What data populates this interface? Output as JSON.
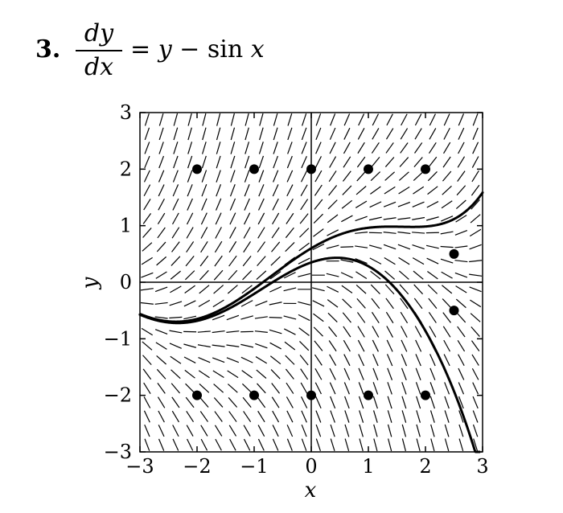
{
  "problem": {
    "number": "3.",
    "lhs_numerator": "dy",
    "lhs_denominator": "dx",
    "rhs_parts": [
      "= ",
      "y",
      " − sin ",
      "x"
    ]
  },
  "chart_data": {
    "type": "slope-field",
    "equation": "y - sin x",
    "xlabel": "x",
    "ylabel": "y",
    "xlim": [
      -3,
      3
    ],
    "ylim": [
      -3,
      3
    ],
    "x_ticks": [
      -3,
      -2,
      -1,
      0,
      1,
      2,
      3
    ],
    "y_ticks": [
      -3,
      -2,
      -1,
      0,
      1,
      2,
      3
    ],
    "x_tick_labels": [
      "−3",
      "−2",
      "−1",
      "0",
      "1",
      "2",
      "3"
    ],
    "y_tick_labels": [
      "−3",
      "−2",
      "−1",
      "0",
      "1",
      "2",
      "3"
    ],
    "grid": false,
    "field_grid_step": 0.25,
    "points": [
      {
        "x": -2,
        "y": 2
      },
      {
        "x": -1,
        "y": 2
      },
      {
        "x": 0,
        "y": 2
      },
      {
        "x": 1,
        "y": 2
      },
      {
        "x": 2,
        "y": 2
      },
      {
        "x": 2.5,
        "y": 0.5
      },
      {
        "x": 2.5,
        "y": -0.5
      },
      {
        "x": -2,
        "y": -2
      },
      {
        "x": -1,
        "y": -2
      },
      {
        "x": 0,
        "y": -2
      },
      {
        "x": 1,
        "y": -2
      },
      {
        "x": 2,
        "y": -2
      }
    ],
    "solution_curves": [
      {
        "y0": 0.6
      },
      {
        "y0": 0.35
      }
    ],
    "colors": {
      "ink": "#000000",
      "background": "#ffffff"
    }
  }
}
